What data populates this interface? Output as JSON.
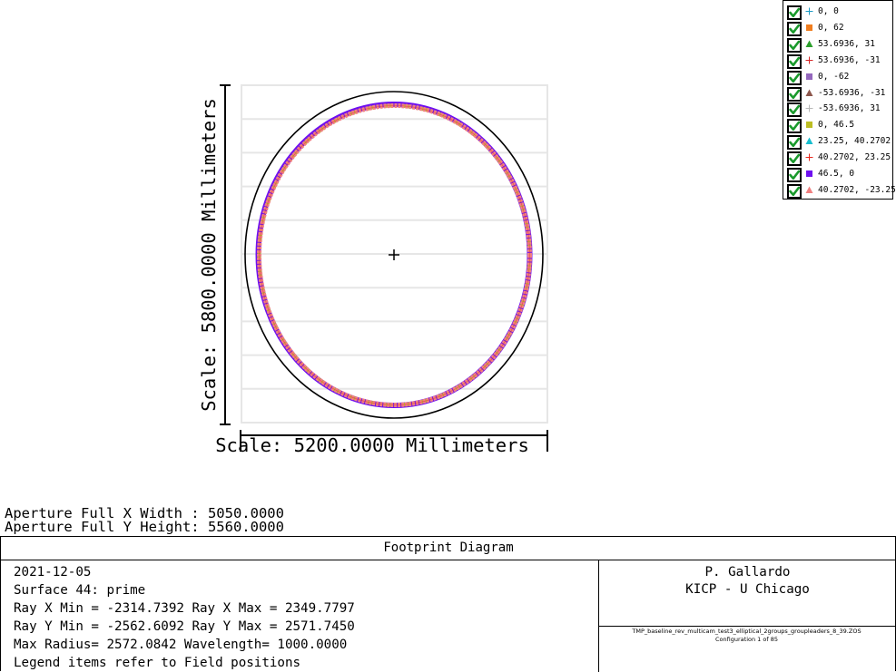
{
  "plot": {
    "y_scale_label": "Scale: 5800.0000 Millimeters",
    "x_scale_label": "Scale: 5200.0000 Millimeters"
  },
  "legend": {
    "items": [
      {
        "label": "0, 0",
        "marker": "cross",
        "color": "#1f9bc4",
        "checked": true
      },
      {
        "label": "0, 62",
        "marker": "square",
        "color": "#f07d1e",
        "checked": true
      },
      {
        "label": "53.6936, 31",
        "marker": "triangle",
        "color": "#2ca02c",
        "checked": true
      },
      {
        "label": "53.6936, -31",
        "marker": "cross",
        "color": "#d62728",
        "checked": true
      },
      {
        "label": "0, -62",
        "marker": "square",
        "color": "#9467bd",
        "checked": true
      },
      {
        "label": "-53.6936, -31",
        "marker": "triangle",
        "color": "#8c564b",
        "checked": true
      },
      {
        "label": "-53.6936, 31",
        "marker": "cross",
        "color": "#b8b8b8",
        "checked": true
      },
      {
        "label": "0, 46.5",
        "marker": "square",
        "color": "#bcbd22",
        "checked": true
      },
      {
        "label": "23.25, 40.2702",
        "marker": "triangle",
        "color": "#17becf",
        "checked": true
      },
      {
        "label": "40.2702, 23.25",
        "marker": "cross",
        "color": "#e8281e",
        "checked": true
      },
      {
        "label": "46.5, 0",
        "marker": "square",
        "color": "#6e0ff0",
        "checked": true
      },
      {
        "label": "40.2702, -23.25",
        "marker": "triangle",
        "color": "#f08080",
        "checked": true
      }
    ]
  },
  "aperture": {
    "x_width": "Aperture Full X Width : 5050.0000",
    "y_height": "Aperture Full Y Height: 5560.0000"
  },
  "info": {
    "title": "Footprint Diagram",
    "date": "2021-12-05",
    "surface": "Surface 44: prime",
    "ray_x": "Ray X Min = -2314.7392 Ray X Max = 2349.7797",
    "ray_y": "Ray Y Min = -2562.6092 Ray Y Max = 2571.7450",
    "max_radius": "Max Radius= 2572.0842 Wavelength= 1000.0000",
    "legend_note": "Legend items refer to Field positions",
    "author": "P. Gallardo",
    "org": "KICP - U Chicago",
    "filename": "TMP_baseline_rev_multicam_test3_elliptical_2groups_groupleaders_8_39.ZOS",
    "config": "Configuration 1 of 85"
  }
}
